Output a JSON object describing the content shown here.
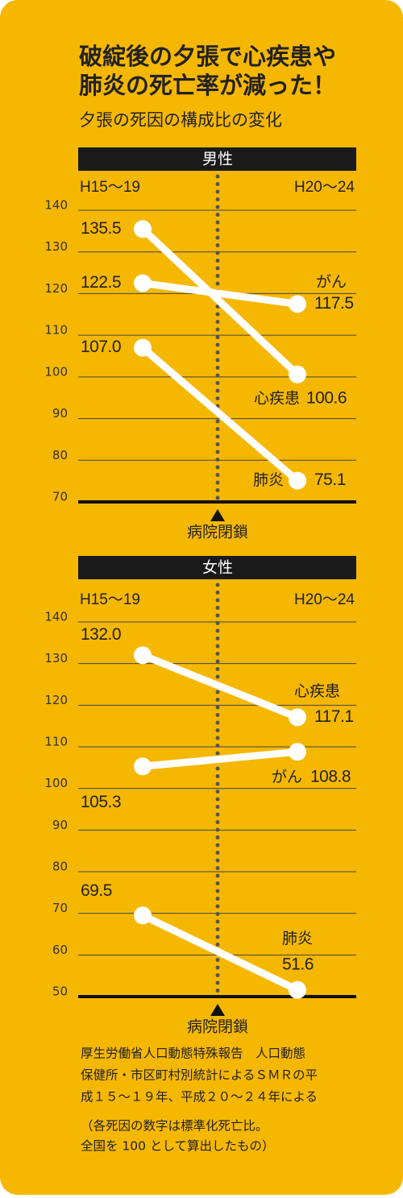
{
  "title": [
    "破綻後の夕張で心疾患や",
    "肺炎の死亡率が減った！"
  ],
  "subtitle": "夕張の死因の構成比の変化",
  "source": [
    "厚生労働省人口動態特殊報告　人口動態",
    "保健所・市区町村別統計によるＳＭＲの平",
    "成１５～１９年、平成２０～２４年による"
  ],
  "note": [
    "（各死因の数字は標準化死亡比。",
    "全国を 100 として算出したもの）"
  ],
  "chart_data": [
    {
      "type": "line",
      "title": "男性",
      "categories": [
        "H15～19",
        "H20～24"
      ],
      "annotation": "病院閉鎖",
      "ylim": [
        70,
        140
      ],
      "yticks": [
        70,
        80,
        90,
        100,
        110,
        120,
        130,
        140
      ],
      "grid": true,
      "series": [
        {
          "name": "がん",
          "color": "#ffffff",
          "values": [
            122.5,
            117.5
          ]
        },
        {
          "name": "心疾患",
          "color": "#ffffff",
          "values": [
            135.5,
            100.6
          ]
        },
        {
          "name": "肺炎",
          "color": "#ffffff",
          "values": [
            107,
            75.1
          ],
          "value_labels": [
            "107.0",
            "75.1"
          ]
        }
      ]
    },
    {
      "type": "line",
      "title": "女性",
      "categories": [
        "H15～19",
        "H20～24"
      ],
      "annotation": "病院閉鎖",
      "ylim": [
        50,
        140
      ],
      "yticks": [
        50,
        60,
        70,
        80,
        90,
        100,
        110,
        120,
        130,
        140
      ],
      "grid": true,
      "series": [
        {
          "name": "心疾患",
          "color": "#ffffff",
          "values": [
            132,
            117.1
          ],
          "value_labels": [
            "132.0",
            "117.1"
          ]
        },
        {
          "name": "がん",
          "color": "#ffffff",
          "values": [
            105.3,
            108.8
          ]
        },
        {
          "name": "肺炎",
          "color": "#ffffff",
          "values": [
            69.5,
            51.6
          ]
        }
      ]
    }
  ]
}
